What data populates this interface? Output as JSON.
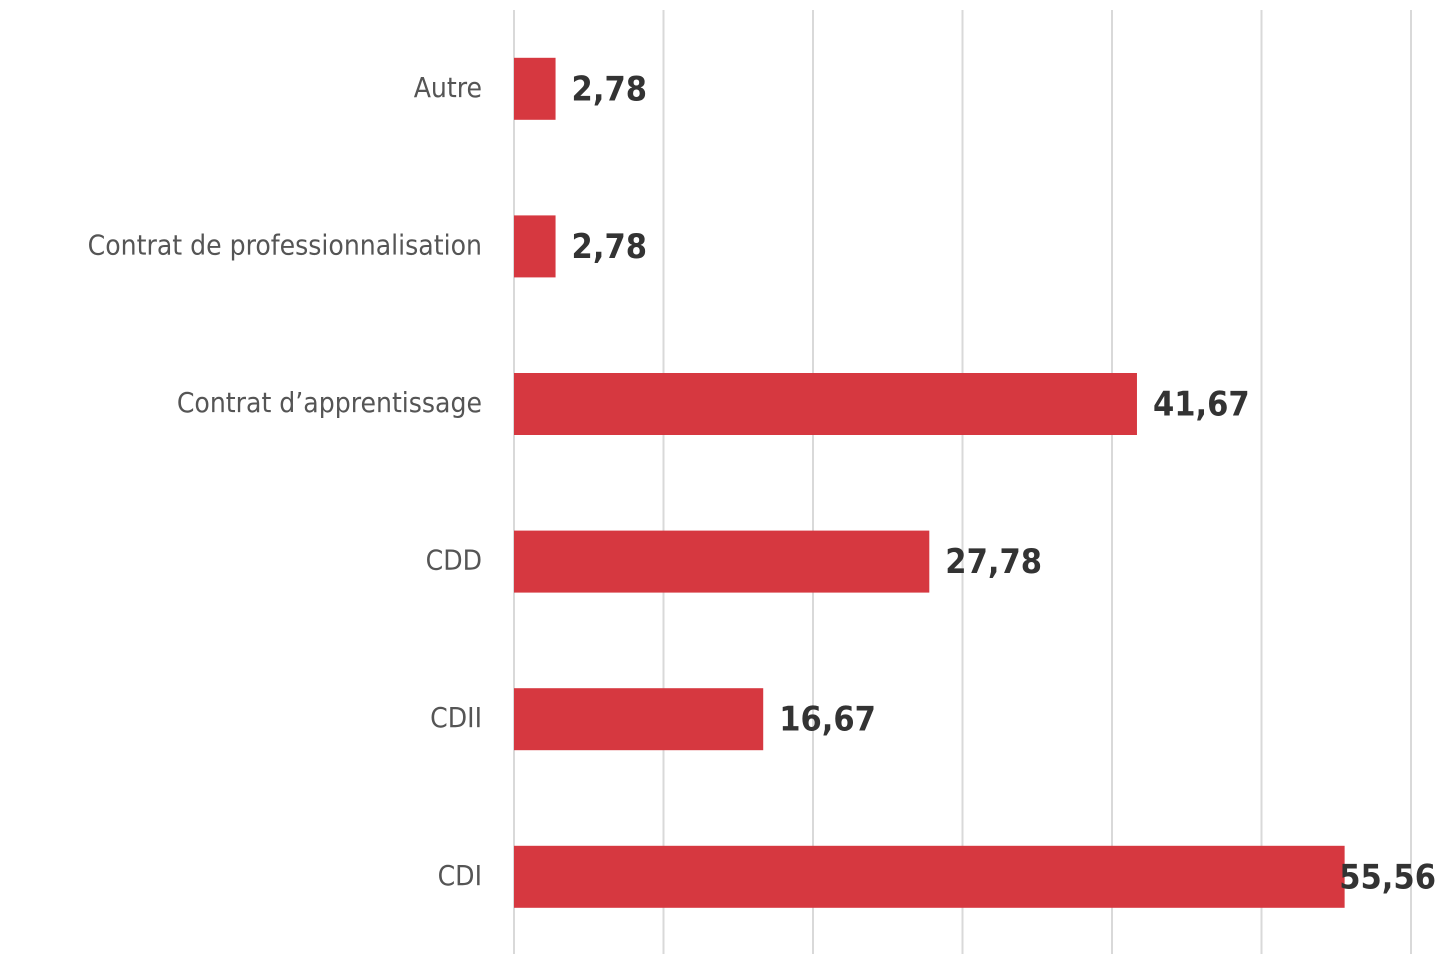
{
  "chart_data": {
    "type": "barh",
    "categories": [
      "Autre",
      "Contrat de professionnalisation",
      "Contrat d’apprentissage",
      "CDD",
      "CDII",
      "CDI"
    ],
    "values": [
      2.78,
      2.78,
      41.67,
      27.78,
      16.67,
      55.56
    ],
    "value_labels": [
      "2,78",
      "2,78",
      "41,67",
      "27,78",
      "16,67",
      "55,56"
    ],
    "color": "#d63840",
    "xlim": [
      0,
      60
    ],
    "xticks": [
      0,
      10,
      20,
      30,
      40,
      50,
      60
    ],
    "grid": true
  }
}
